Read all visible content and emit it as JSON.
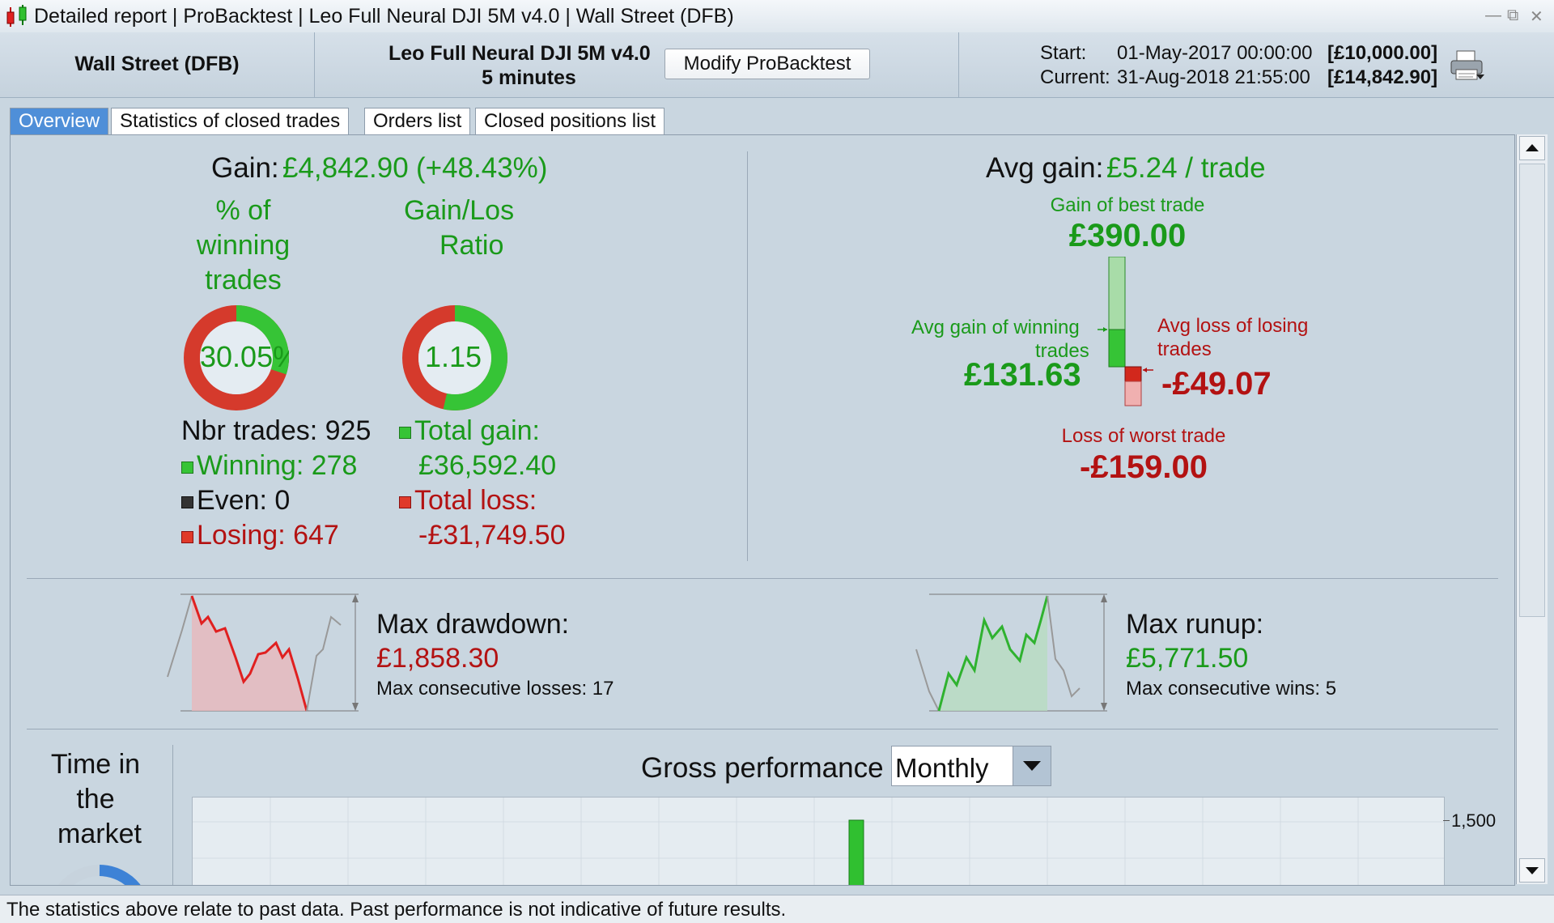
{
  "window": {
    "title": "Detailed report | ProBacktest | Leo Full Neural DJI 5M v4.0 | Wall Street (DFB)"
  },
  "header": {
    "instrument": "Wall Street (DFB)",
    "strategy_name": "Leo Full Neural DJI 5M v4.0",
    "timeframe": "5 minutes",
    "modify_button": "Modify ProBacktest",
    "start_label": "Start:",
    "start_date": "01-May-2017 00:00:00",
    "start_capital": "[£10,000.00]",
    "current_label": "Current:",
    "current_date": "31-Aug-2018 21:55:00",
    "current_capital": "[£14,842.90]"
  },
  "tabs": [
    {
      "label": "Overview",
      "active": true
    },
    {
      "label": "Statistics of closed trades",
      "active": false
    },
    {
      "label": "Orders list",
      "active": false
    },
    {
      "label": "Closed positions list",
      "active": false
    }
  ],
  "overview": {
    "gain_label": "Gain:",
    "gain_value": "£4,842.90",
    "gain_pct": "(+48.43%)",
    "winning_title_1": "% of",
    "winning_title_2": "winning",
    "winning_title_3": "trades",
    "winning_pct": "30.05%",
    "winning_fraction": 0.3005,
    "ratio_title_1": "Gain/Los",
    "ratio_title_2": "Ratio",
    "ratio_value": "1.15",
    "ratio_fraction": 0.535,
    "nbr_trades": "Nbr trades: 925",
    "winning": "Winning: 278",
    "even": "Even: 0",
    "losing": "Losing: 647",
    "total_gain_label": "Total gain:",
    "total_gain_value": "£36,592.40",
    "total_loss_label": "Total loss:",
    "total_loss_value": "-£31,749.50",
    "avg_gain_label": "Avg gain:",
    "avg_gain_value": "£5.24 / trade",
    "best_trade_label": "Gain of best trade",
    "best_trade_value": "£390.00",
    "avg_win_label_1": "Avg gain of winning",
    "avg_win_label_2": "trades",
    "avg_win_value": "£131.63",
    "avg_loss_label_1": "Avg loss of losing",
    "avg_loss_label_2": "trades",
    "avg_loss_value": "-£49.07",
    "worst_trade_label": "Loss of worst trade",
    "worst_trade_value": "-£159.00",
    "max_drawdown_label": "Max drawdown:",
    "max_drawdown_value": "£1,858.30",
    "max_consec_losses": "Max consecutive losses: 17",
    "max_runup_label": "Max runup:",
    "max_runup_value": "£5,771.50",
    "max_consec_wins": "Max consecutive wins: 5",
    "time_in_market_1": "Time in",
    "time_in_market_2": "the",
    "time_in_market_3": "market",
    "gross_perf_label": "Gross performance",
    "period_select": "Monthly",
    "gross_axis_tick": "1,500"
  },
  "colors": {
    "gain_green": "#1a9a1a",
    "loss_red": "#b31212",
    "accent_blue": "#4f8fd8"
  },
  "status": {
    "disclaimer": "The statistics above relate to past data. Past performance is not indicative of future results."
  }
}
